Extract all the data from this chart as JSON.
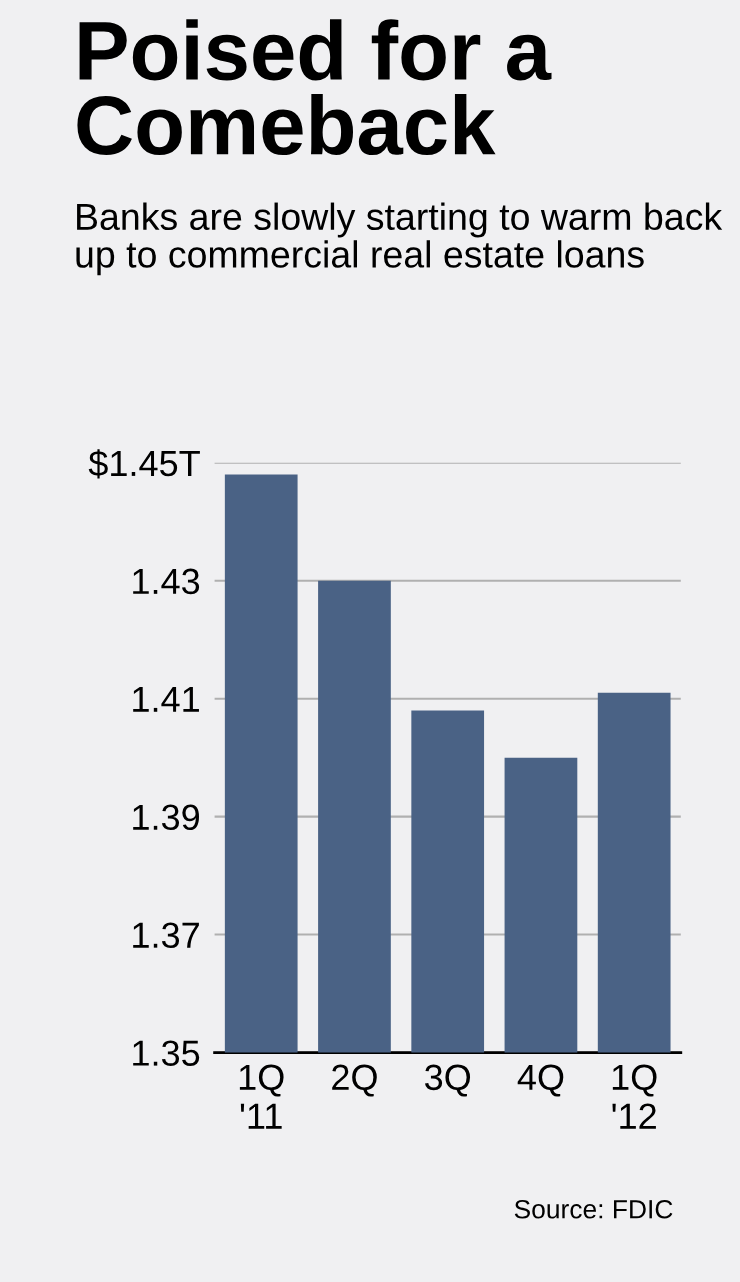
{
  "chart_data": {
    "type": "bar",
    "title": "Poised for a Comeback",
    "subtitle": "Banks are slowly starting to warm back up to commercial real estate loans",
    "categories": [
      "1Q\n'11",
      "2Q",
      "3Q",
      "4Q",
      "1Q\n'12"
    ],
    "values": [
      1.448,
      1.43,
      1.408,
      1.4,
      1.411
    ],
    "color": "#4a6285",
    "ylim": [
      1.35,
      1.45
    ],
    "yticks": [
      1.35,
      1.37,
      1.39,
      1.41,
      1.43,
      {
        "value": 1.45,
        "label": "$1.45T"
      }
    ],
    "grid": "y",
    "annotations": [
      "Source: FDIC"
    ]
  }
}
